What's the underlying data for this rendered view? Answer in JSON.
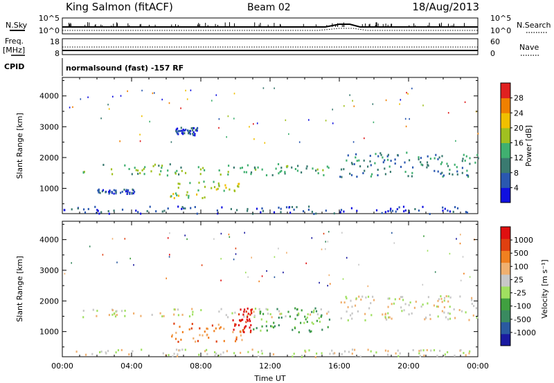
{
  "header": {
    "station": "King Salmon (fitACF)",
    "beam": "Beam 02",
    "date": "18/Aug/2013"
  },
  "housekeeping": {
    "nsky_label": "N.Sky",
    "nsearch_label": "N.Search",
    "nsky_ticks": [
      "10^5",
      "10^0"
    ],
    "nsearch_ticks": [
      "10^5",
      "10^0"
    ],
    "freq_label": "Freq.",
    "freq_unit": "[MHz]",
    "freq_ticks": [
      "18",
      "8"
    ],
    "nave_label": "Nave",
    "nave_ticks": [
      "60",
      "0"
    ],
    "cpid_label": "CPID",
    "cpid_text": "normalsound (fast) -157 RF"
  },
  "colors": {
    "scatter_bg": "#d3d3d3"
  },
  "chart_data": [
    {
      "type": "heatmap",
      "panel": "power",
      "ylabel": "Slant Range [km]",
      "y_ticks": [
        1000,
        2000,
        3000,
        4000
      ],
      "ylim": [
        180,
        4600
      ],
      "x_ticks": [
        "00:00",
        "04:00",
        "08:00",
        "12:00",
        "16:00",
        "20:00",
        "00:00"
      ],
      "xlim_hours": [
        0,
        24
      ],
      "colorbar": {
        "label": "Power [dB]",
        "tick_labels": [
          "4",
          "8",
          "12",
          "16",
          "20",
          "24",
          "28"
        ],
        "colors": [
          "#1010e0",
          "#2a58b0",
          "#3a7a70",
          "#40b070",
          "#a0c020",
          "#f0c000",
          "#f08000",
          "#e02020"
        ]
      },
      "echo_regions": [
        {
          "t_start": 1.1,
          "t_end": 15.4,
          "r_low": 1450,
          "r_high": 1820,
          "level": 3
        },
        {
          "t_start": 6.2,
          "t_end": 10.2,
          "r_low": 700,
          "r_high": 1300,
          "level": 4
        },
        {
          "t_start": 2.0,
          "t_end": 4.2,
          "r_low": 850,
          "r_high": 1000,
          "level": 1
        },
        {
          "t_start": 16.0,
          "t_end": 24.0,
          "r_low": 1400,
          "r_high": 2200,
          "level": 2
        },
        {
          "t_start": 6.5,
          "t_end": 7.8,
          "r_low": 2750,
          "r_high": 3000,
          "level": 1
        },
        {
          "t_start": 0.0,
          "t_end": 24.0,
          "r_low": 200,
          "r_high": 450,
          "level": 1
        }
      ]
    },
    {
      "type": "heatmap",
      "panel": "velocity",
      "ylabel": "Slant Range [km]",
      "y_ticks": [
        1000,
        2000,
        3000,
        4000
      ],
      "ylim": [
        180,
        4600
      ],
      "x_ticks": [
        "00:00",
        "04:00",
        "08:00",
        "12:00",
        "16:00",
        "20:00",
        "00:00"
      ],
      "xlim_hours": [
        0,
        24
      ],
      "xlabel": "Time UT",
      "colorbar": {
        "label": "Velocity [m s⁻¹]",
        "tick_labels": [
          "1000",
          "500",
          "100",
          "25",
          "-25",
          "-100",
          "-500",
          "-1000"
        ],
        "colors": [
          "#1a1aa0",
          "#2a5aa0",
          "#3a8a60",
          "#40a040",
          "#a0e060",
          "#c8c8c8",
          "#f0b070",
          "#f08020",
          "#e04010",
          "#e01010"
        ]
      },
      "echo_regions": [
        {
          "t_start": 1.1,
          "t_end": 15.4,
          "r_low": 1500,
          "r_high": 1780,
          "level": 5
        },
        {
          "t_start": 6.2,
          "t_end": 10.5,
          "r_low": 700,
          "r_high": 1300,
          "level": 7
        },
        {
          "t_start": 9.8,
          "t_end": 11.0,
          "r_low": 1000,
          "r_high": 1800,
          "level": 9
        },
        {
          "t_start": 11.0,
          "t_end": 15.4,
          "r_low": 1000,
          "r_high": 1800,
          "level": 3
        },
        {
          "t_start": 16.0,
          "t_end": 24.0,
          "r_low": 1400,
          "r_high": 2200,
          "level": 5
        },
        {
          "t_start": 0.0,
          "t_end": 24.0,
          "r_low": 200,
          "r_high": 450,
          "level": 5
        }
      ]
    }
  ]
}
